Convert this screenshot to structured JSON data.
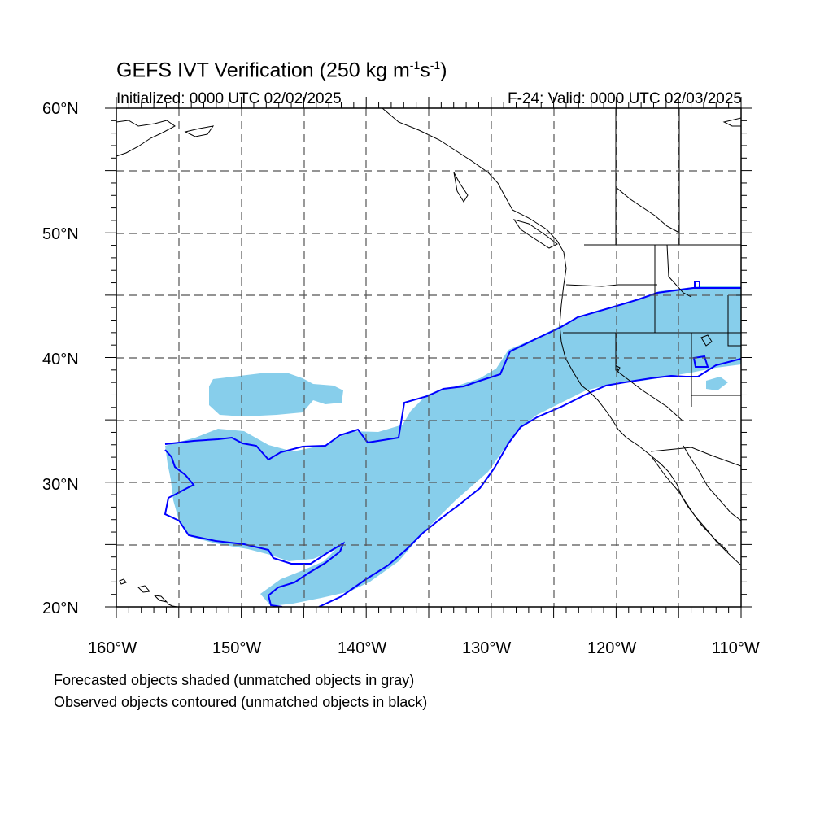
{
  "title": {
    "main": "GEFS IVT Verification (250 kg m",
    "exp1": "-1",
    "mid": "s",
    "exp2": "-1",
    "end": ")"
  },
  "initialized": "Initialized: 0000 UTC 02/02/2025",
  "valid": "F-24: Valid: 0000 UTC 02/03/2025",
  "lat_labels": [
    "60°N",
    "50°N",
    "40°N",
    "30°N",
    "20°N"
  ],
  "lon_labels": [
    "160°W",
    "150°W",
    "140°W",
    "130°W",
    "120°W",
    "110°W"
  ],
  "notes": [
    "Forecasted objects shaded (unmatched objects in gray)",
    "Observed objects contoured (unmatched objects in black)"
  ],
  "colors": {
    "forecast_fill": "#87ceeb",
    "observed_contour": "#0000ff",
    "coastline": "#000000",
    "grid": "#555555"
  },
  "map": {
    "projection": "cylindrical-equidistant",
    "lon_range": [
      -160,
      -110
    ],
    "lat_range": [
      20,
      60
    ],
    "grid_spacing_deg": 5
  }
}
